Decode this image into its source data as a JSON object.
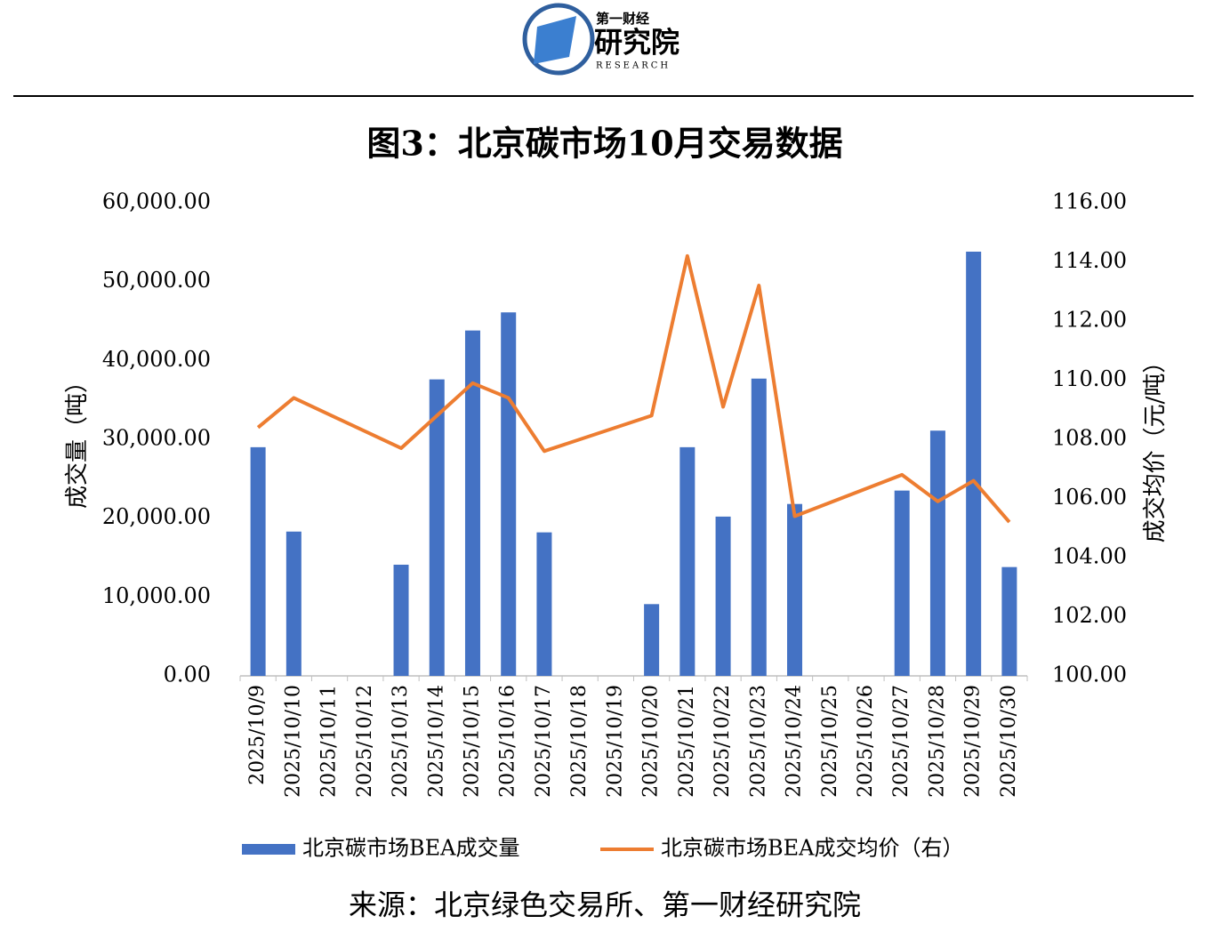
{
  "logo": {
    "top": "第一财经",
    "main": "研究院",
    "sub": "RESEARCH"
  },
  "chart_data": {
    "type": "bar+line",
    "title": "图3：北京碳市场10月交易数据",
    "source": "来源：北京绿色交易所、第一财经研究院",
    "ylabel": "成交量（吨）",
    "y2label": "成交均价（元/吨）",
    "categories": [
      "2025/10/9",
      "2025/10/10",
      "2025/10/11",
      "2025/10/12",
      "2025/10/13",
      "2025/10/14",
      "2025/10/15",
      "2025/10/16",
      "2025/10/17",
      "2025/10/18",
      "2025/10/19",
      "2025/10/20",
      "2025/10/21",
      "2025/10/22",
      "2025/10/23",
      "2025/10/24",
      "2025/10/25",
      "2025/10/26",
      "2025/10/27",
      "2025/10/28",
      "2025/10/29",
      "2025/10/30"
    ],
    "series": [
      {
        "name": "北京碳市场BEA成交量",
        "type": "bar",
        "color": "#4472c4",
        "values": [
          29000,
          18300,
          null,
          null,
          14100,
          37600,
          43800,
          46100,
          18200,
          null,
          null,
          9100,
          29000,
          20200,
          37700,
          21800,
          null,
          null,
          23500,
          31100,
          53800,
          13800
        ]
      },
      {
        "name": "北京碳市场BEA成交均价（右）",
        "type": "line",
        "axis": "y2",
        "color": "#ed7d31",
        "span_gaps": true,
        "values": [
          108.4,
          109.4,
          null,
          null,
          107.7,
          108.8,
          109.9,
          109.4,
          107.6,
          null,
          null,
          108.8,
          114.2,
          109.1,
          113.2,
          105.4,
          null,
          null,
          106.8,
          105.9,
          106.6,
          105.2
        ]
      }
    ],
    "ylim": [
      0,
      60000
    ],
    "yticks": [
      {
        "value": 0,
        "label": "0.00"
      },
      {
        "value": 10000,
        "label": "10,000.00"
      },
      {
        "value": 20000,
        "label": "20,000.00"
      },
      {
        "value": 30000,
        "label": "30,000.00"
      },
      {
        "value": 40000,
        "label": "40,000.00"
      },
      {
        "value": 50000,
        "label": "50,000.00"
      },
      {
        "value": 60000,
        "label": "60,000.00"
      }
    ],
    "y2lim": [
      100,
      116
    ],
    "y2ticks": [
      {
        "value": 100,
        "label": "100.00"
      },
      {
        "value": 102,
        "label": "102.00"
      },
      {
        "value": 104,
        "label": "104.00"
      },
      {
        "value": 106,
        "label": "106.00"
      },
      {
        "value": 108,
        "label": "108.00"
      },
      {
        "value": 110,
        "label": "110.00"
      },
      {
        "value": 112,
        "label": "112.00"
      },
      {
        "value": 114,
        "label": "114.00"
      },
      {
        "value": 116,
        "label": "116.00"
      }
    ],
    "legend": "bottom"
  }
}
